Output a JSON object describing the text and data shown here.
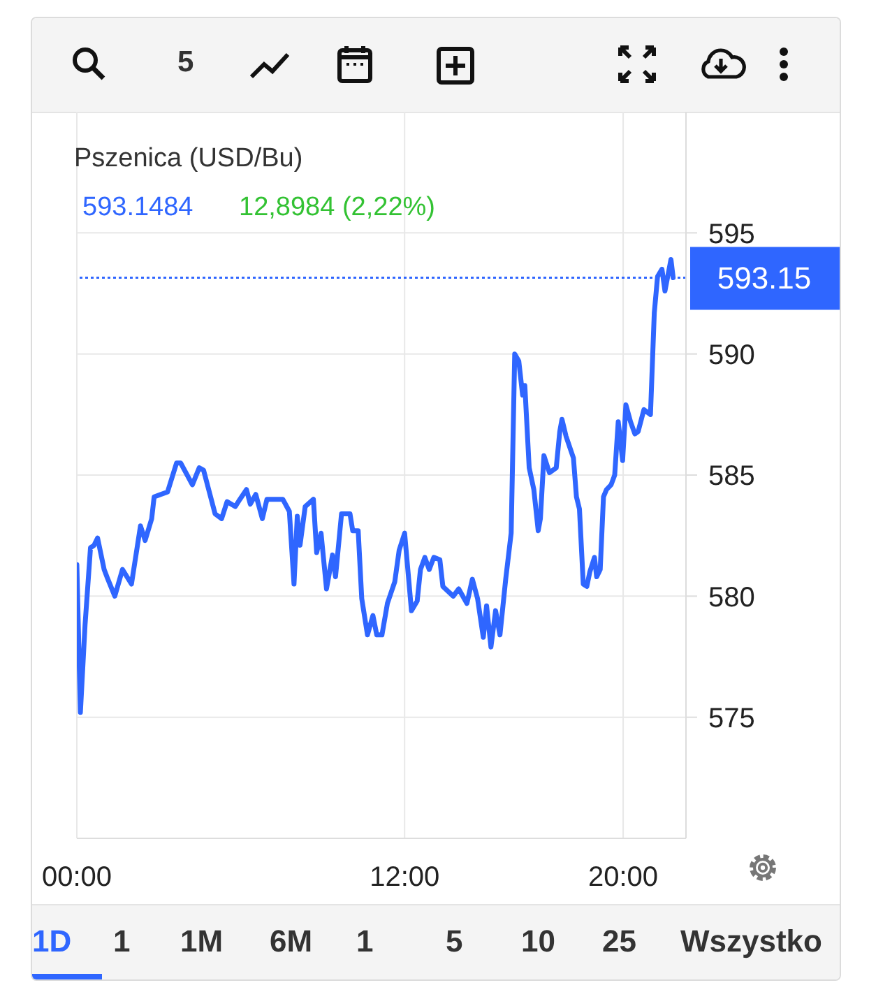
{
  "chart_data": {
    "type": "line",
    "title": "Pszenica (USD/Bu)",
    "series": [
      {
        "color": "#2f66ff",
        "x": [
          0,
          0.13,
          0.3,
          0.5,
          0.63,
          0.76,
          1.0,
          1.1,
          1.39,
          1.67,
          2.0,
          2.33,
          2.5,
          2.74,
          2.83,
          3.07,
          3.32,
          3.65,
          3.8,
          4.23,
          4.48,
          4.64,
          5.06,
          5.3,
          5.5,
          5.8,
          5.97,
          6.21,
          6.35,
          6.55,
          6.79,
          6.96,
          7.54,
          7.78,
          7.95,
          8.07,
          8.17,
          8.36,
          8.66,
          8.78,
          8.94,
          9.14,
          9.36,
          9.47,
          9.69,
          10.0,
          10.1,
          10.3,
          10.43,
          10.64,
          10.84,
          10.98,
          11.17,
          11.37,
          11.64,
          11.8,
          12.0,
          12.25,
          12.46,
          12.58,
          12.74,
          12.9,
          13.07,
          13.29,
          13.4,
          13.78,
          13.98,
          14.28,
          14.48,
          14.67,
          14.88,
          15.0,
          15.16,
          15.33,
          15.49,
          15.7,
          15.9,
          16.03,
          16.18,
          16.32,
          16.4,
          16.56,
          16.73,
          16.89,
          16.97,
          17.1,
          17.3,
          17.55,
          17.68,
          17.76,
          17.91,
          18.18,
          18.29,
          18.4,
          18.54,
          18.67,
          18.78,
          18.95,
          19.03,
          19.16,
          19.28,
          19.39,
          19.56,
          19.69,
          19.82,
          19.98,
          20.1,
          20.27,
          20.43,
          20.55,
          20.76,
          21.0,
          21.14,
          21.26,
          21.42,
          21.53,
          21.75,
          21.83
        ],
        "values": [
          581.3,
          575.2,
          578.8,
          582.0,
          582.1,
          582.4,
          581.1,
          580.8,
          580.0,
          581.1,
          580.5,
          582.9,
          582.3,
          583.2,
          584.1,
          584.2,
          584.3,
          585.5,
          585.5,
          584.6,
          585.3,
          585.2,
          583.4,
          583.2,
          583.9,
          583.7,
          584.0,
          584.4,
          583.8,
          584.2,
          583.2,
          584.0,
          584.0,
          583.5,
          580.5,
          583.3,
          582.1,
          583.7,
          584.0,
          581.8,
          582.6,
          580.3,
          581.7,
          580.8,
          583.4,
          583.4,
          582.7,
          582.7,
          579.9,
          578.4,
          579.2,
          578.4,
          578.4,
          579.7,
          580.6,
          581.9,
          582.6,
          579.4,
          579.8,
          581.1,
          581.6,
          581.1,
          581.6,
          581.5,
          580.4,
          580.0,
          580.3,
          579.7,
          580.7,
          579.9,
          578.3,
          579.6,
          577.9,
          579.4,
          578.4,
          580.7,
          582.6,
          590.0,
          589.7,
          588.3,
          588.7,
          585.3,
          584.4,
          582.7,
          583.2,
          585.8,
          585.1,
          585.3,
          586.8,
          587.3,
          586.6,
          585.7,
          584.1,
          583.6,
          580.5,
          580.4,
          581.0,
          581.6,
          580.8,
          581.1,
          584.1,
          584.4,
          584.6,
          585.0,
          587.2,
          585.6,
          587.9,
          587.2,
          586.7,
          586.8,
          587.7,
          587.5,
          591.7,
          593.2,
          593.5,
          592.6,
          593.9,
          593.15
        ]
      }
    ],
    "xlim": [
      0,
      22.3
    ],
    "xticks": [
      {
        "value": 0,
        "label": "00:00"
      },
      {
        "value": 12,
        "label": "12:00"
      },
      {
        "value": 20,
        "label": "20:00"
      }
    ],
    "ylim": [
      570,
      600
    ],
    "yticks": [
      575,
      580,
      585,
      590,
      595
    ],
    "grid": true,
    "marker": "none",
    "line_style": "solid",
    "ref_lines": [
      {
        "axis": "y",
        "value": 593.15,
        "label": "593.15",
        "color": "#2f66ff",
        "line_style": "dotted"
      }
    ],
    "annotations": [
      "593.1484",
      "12,8984 (2,22%)",
      "5",
      "1D",
      "1",
      "1M",
      "6M",
      "1",
      "5",
      "10",
      "25",
      "Wszystko"
    ]
  }
}
